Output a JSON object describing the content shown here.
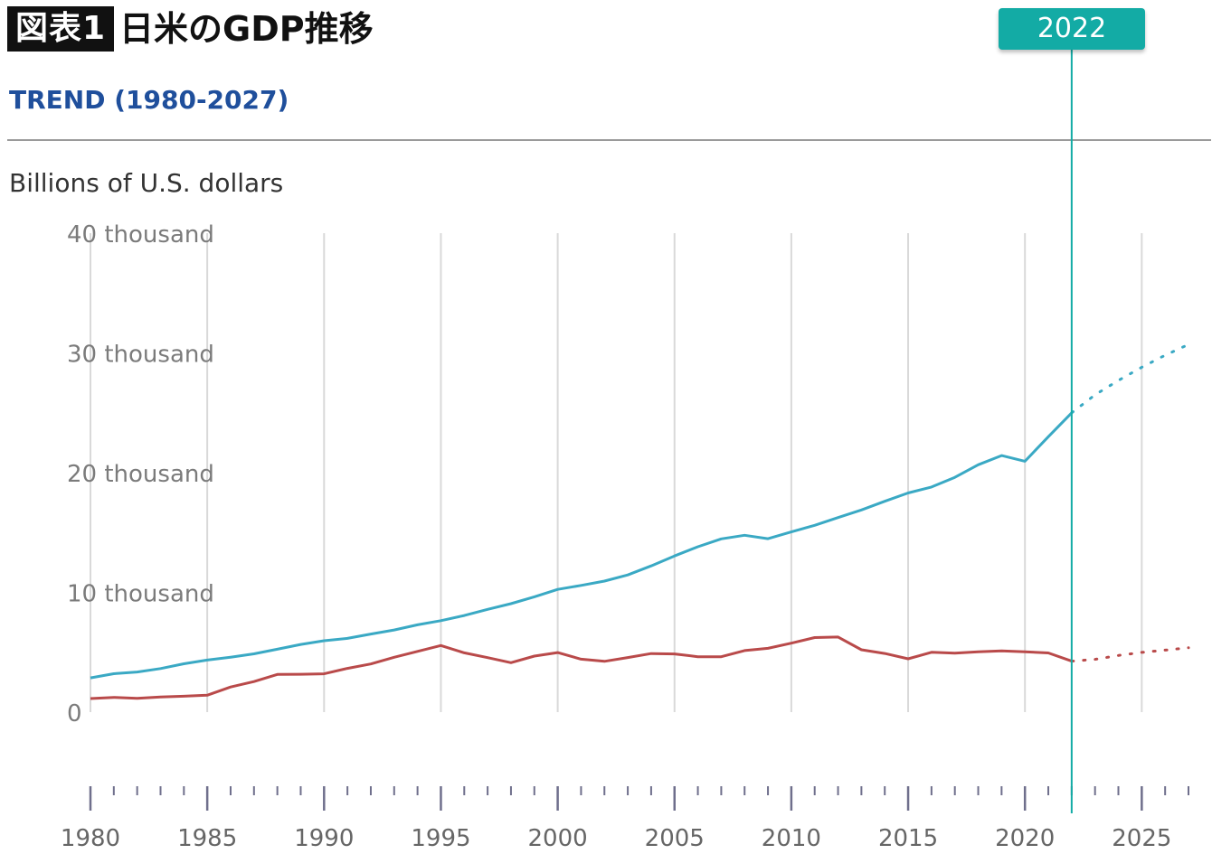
{
  "header": {
    "badge": "図表1",
    "title": "日米のGDP推移"
  },
  "subtitle": "TREND (1980-2027)",
  "unit_label": "Billions of U.S. dollars",
  "marker": {
    "label": "2022",
    "year": 2022,
    "color": "#13aba5"
  },
  "colors": {
    "us": "#3aa9c4",
    "japan": "#b94a4a",
    "grid": "#d9d9d9",
    "axis_tick": "#6f6f8c"
  },
  "chart_data": {
    "type": "line",
    "title": "日米のGDP推移",
    "subtitle": "TREND (1980-2027)",
    "ylabel": "Billions of U.S. dollars",
    "ylim": [
      0,
      40000
    ],
    "xlim": [
      1980,
      2027
    ],
    "y_ticks": [
      {
        "value": 0,
        "label": "0"
      },
      {
        "value": 10000,
        "label": "10 thousand"
      },
      {
        "value": 20000,
        "label": "20 thousand"
      },
      {
        "value": 30000,
        "label": "30 thousand"
      },
      {
        "value": 40000,
        "label": "40 thousand"
      }
    ],
    "x_ticks": [
      1980,
      1985,
      1990,
      1995,
      2000,
      2005,
      2010,
      2015,
      2020,
      2025
    ],
    "grid": true,
    "projection_from": 2022,
    "series": [
      {
        "key": "us",
        "x": [
          1980,
          1981,
          1982,
          1983,
          1984,
          1985,
          1986,
          1987,
          1988,
          1989,
          1990,
          1991,
          1992,
          1993,
          1994,
          1995,
          1996,
          1997,
          1998,
          1999,
          2000,
          2001,
          2002,
          2003,
          2004,
          2005,
          2006,
          2007,
          2008,
          2009,
          2010,
          2011,
          2012,
          2013,
          2014,
          2015,
          2016,
          2017,
          2018,
          2019,
          2020,
          2021,
          2022,
          2023,
          2024,
          2025,
          2026,
          2027
        ],
        "values": [
          2860,
          3210,
          3350,
          3640,
          4040,
          4350,
          4590,
          4870,
          5250,
          5650,
          5960,
          6160,
          6520,
          6860,
          7290,
          7640,
          8070,
          8580,
          9060,
          9630,
          10250,
          10580,
          10940,
          11460,
          12210,
          13040,
          13810,
          14470,
          14770,
          14480,
          15050,
          15600,
          16250,
          16880,
          17610,
          18300,
          18800,
          19610,
          20660,
          21430,
          20950,
          23000,
          25000,
          26500,
          27700,
          28800,
          29800,
          30700
        ]
      },
      {
        "key": "japan",
        "x": [
          1980,
          1981,
          1982,
          1983,
          1984,
          1985,
          1986,
          1987,
          1988,
          1989,
          1990,
          1991,
          1992,
          1993,
          1994,
          1995,
          1996,
          1997,
          1998,
          1999,
          2000,
          2001,
          2002,
          2003,
          2004,
          2005,
          2006,
          2007,
          2008,
          2009,
          2010,
          2011,
          2012,
          2013,
          2014,
          2015,
          2016,
          2017,
          2018,
          2019,
          2020,
          2021,
          2022,
          2023,
          2024,
          2025,
          2026,
          2027
        ],
        "values": [
          1130,
          1230,
          1150,
          1270,
          1330,
          1410,
          2100,
          2550,
          3150,
          3160,
          3200,
          3650,
          4020,
          4580,
          5070,
          5560,
          4950,
          4550,
          4130,
          4680,
          4970,
          4420,
          4240,
          4560,
          4890,
          4860,
          4630,
          4630,
          5140,
          5330,
          5760,
          6230,
          6270,
          5210,
          4900,
          4450,
          5000,
          4930,
          5040,
          5120,
          5040,
          4940,
          4260,
          4410,
          4730,
          4990,
          5180,
          5380
        ]
      }
    ]
  }
}
